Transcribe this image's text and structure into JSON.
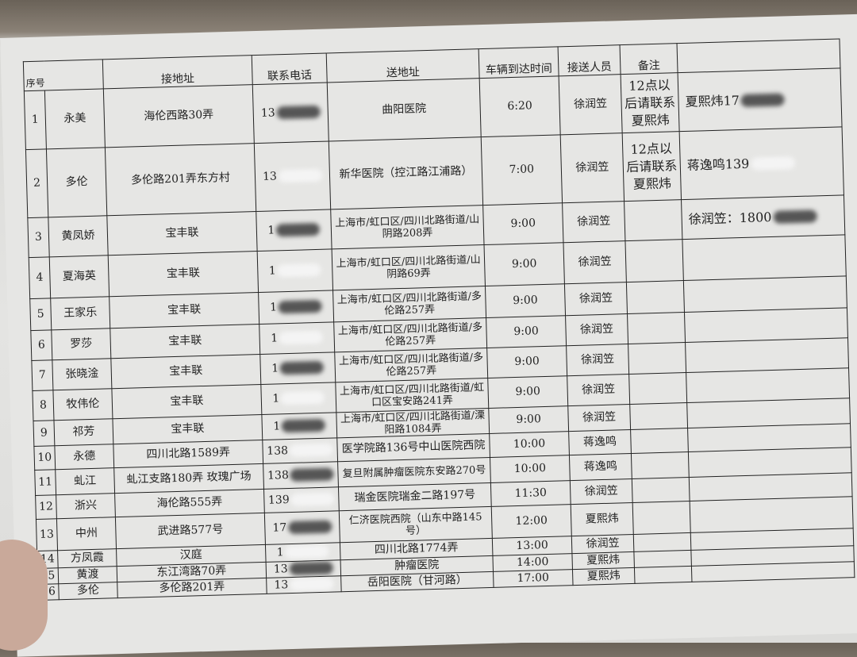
{
  "headers": [
    "序号",
    "",
    "接地址",
    "联系电话",
    "送地址",
    "车辆到达时间",
    "接送人员",
    "备注",
    ""
  ],
  "rows": [
    {
      "no": "1",
      "name": "永美",
      "pickup": "海伦西路30弄",
      "phone": "13",
      "dest": "曲阳医院",
      "time": "6:20",
      "staff": "徐润笠",
      "note": "12点以后请联系夏熙炜",
      "extra": "夏熙炜17"
    },
    {
      "no": "2",
      "name": "多伦",
      "pickup": "多伦路201弄东方村",
      "phone": "13",
      "dest": "新华医院（控江路江浦路）",
      "time": "7:00",
      "staff": "徐润笠",
      "note": "12点以后请联系夏熙炜",
      "extra": "蒋逸鸣139"
    },
    {
      "no": "3",
      "name": "黄凤娇",
      "pickup": "宝丰联",
      "phone": "1",
      "dest": "上海市/虹口区/四川北路街道/山阴路208弄",
      "time": "9:00",
      "staff": "徐润笠",
      "note": "",
      "extra": "徐润笠：1800"
    },
    {
      "no": "4",
      "name": "夏海英",
      "pickup": "宝丰联",
      "phone": "1",
      "dest": "上海市/虹口区/四川北路街道/山阴路69弄",
      "time": "9:00",
      "staff": "徐润笠",
      "note": "",
      "extra": ""
    },
    {
      "no": "5",
      "name": "王家乐",
      "pickup": "宝丰联",
      "phone": "1",
      "dest": "上海市/虹口区/四川北路街道/多伦路257弄",
      "time": "9:00",
      "staff": "徐润笠",
      "note": "",
      "extra": ""
    },
    {
      "no": "6",
      "name": "罗莎",
      "pickup": "宝丰联",
      "phone": "1",
      "dest": "上海市/虹口区/四川北路街道/多伦路257弄",
      "time": "9:00",
      "staff": "徐润笠",
      "note": "",
      "extra": ""
    },
    {
      "no": "7",
      "name": "张晓淦",
      "pickup": "宝丰联",
      "phone": "1",
      "dest": "上海市/虹口区/四川北路街道/多伦路257弄",
      "time": "9:00",
      "staff": "徐润笠",
      "note": "",
      "extra": ""
    },
    {
      "no": "8",
      "name": "牧伟伦",
      "pickup": "宝丰联",
      "phone": "1",
      "dest": "上海市/虹口区/四川北路街道/虹口区宝安路241弄",
      "time": "9:00",
      "staff": "徐润笠",
      "note": "",
      "extra": ""
    },
    {
      "no": "9",
      "name": "祁芳",
      "pickup": "宝丰联",
      "phone": "1",
      "dest": "上海市/虹口区/四川北路街道/溧阳路1084弄",
      "time": "9:00",
      "staff": "徐润笠",
      "note": "",
      "extra": ""
    },
    {
      "no": "10",
      "name": "永德",
      "pickup": "四川北路1589弄",
      "phone": "138",
      "dest": "医学院路136号中山医院西院",
      "time": "10:00",
      "staff": "蒋逸鸣",
      "note": "",
      "extra": ""
    },
    {
      "no": "11",
      "name": "虬江",
      "pickup": "虬江支路180弄 玫瑰广场",
      "phone": "138",
      "dest": "复旦附属肿瘤医院东安路270号",
      "time": "10:00",
      "staff": "蒋逸鸣",
      "note": "",
      "extra": ""
    },
    {
      "no": "12",
      "name": "浙兴",
      "pickup": "海伦路555弄",
      "phone": "139",
      "dest": "瑞金医院瑞金二路197号",
      "time": "11:30",
      "staff": "徐润笠",
      "note": "",
      "extra": ""
    },
    {
      "no": "13",
      "name": "中州",
      "pickup": "武进路577号",
      "phone": "17",
      "dest": "仁济医院西院（山东中路145号）",
      "time": "12:00",
      "staff": "夏熙炜",
      "note": "",
      "extra": ""
    },
    {
      "no": "14",
      "name": "方凤霞",
      "pickup": "汉庭",
      "phone": "1",
      "dest": "四川北路1774弄",
      "time": "13:00",
      "staff": "徐润笠",
      "note": "",
      "extra": ""
    },
    {
      "no": "15",
      "name": "黄渡",
      "pickup": "东江湾路70弄",
      "phone": "13",
      "dest": "肿瘤医院",
      "time": "14:00",
      "staff": "夏熙炜",
      "note": "",
      "extra": ""
    },
    {
      "no": "16",
      "name": "多伦",
      "pickup": "多伦路201弄",
      "phone": "13",
      "dest": "岳阳医院（甘河路）",
      "time": "17:00",
      "staff": "夏熙炜",
      "note": "",
      "extra": ""
    }
  ]
}
